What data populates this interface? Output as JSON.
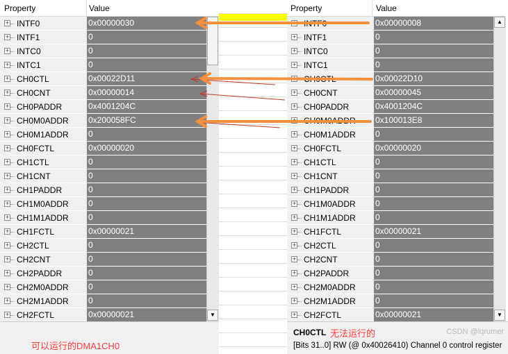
{
  "columns": {
    "property": "Property",
    "value": "Value"
  },
  "left": {
    "rows": [
      [
        "INTF0",
        "0x00000030"
      ],
      [
        "INTF1",
        "0"
      ],
      [
        "INTC0",
        "0"
      ],
      [
        "INTC1",
        "0"
      ],
      [
        "CH0CTL",
        "0x00022D11"
      ],
      [
        "CH0CNT",
        "0x00000014"
      ],
      [
        "CH0PADDR",
        "0x4001204C"
      ],
      [
        "CH0M0ADDR",
        "0x200058FC"
      ],
      [
        "CH0M1ADDR",
        "0"
      ],
      [
        "CH0FCTL",
        "0x00000020"
      ],
      [
        "CH1CTL",
        "0"
      ],
      [
        "CH1CNT",
        "0"
      ],
      [
        "CH1PADDR",
        "0"
      ],
      [
        "CH1M0ADDR",
        "0"
      ],
      [
        "CH1M1ADDR",
        "0"
      ],
      [
        "CH1FCTL",
        "0x00000021"
      ],
      [
        "CH2CTL",
        "0"
      ],
      [
        "CH2CNT",
        "0"
      ],
      [
        "CH2PADDR",
        "0"
      ],
      [
        "CH2M0ADDR",
        "0"
      ],
      [
        "CH2M1ADDR",
        "0"
      ],
      [
        "CH2FCTL",
        "0x00000021"
      ]
    ],
    "annotation": "可以运行的DMA1CH0"
  },
  "right": {
    "rows": [
      [
        "INTF0",
        "0x00000008"
      ],
      [
        "INTF1",
        "0"
      ],
      [
        "INTC0",
        "0"
      ],
      [
        "INTC1",
        "0"
      ],
      [
        "CH0CTL",
        "0x00022D10"
      ],
      [
        "CH0CNT",
        "0x00000045"
      ],
      [
        "CH0PADDR",
        "0x4001204C"
      ],
      [
        "CH0M0ADDR",
        "0x100013E8"
      ],
      [
        "CH0M1ADDR",
        "0"
      ],
      [
        "CH0FCTL",
        "0x00000020"
      ],
      [
        "CH1CTL",
        "0"
      ],
      [
        "CH1CNT",
        "0"
      ],
      [
        "CH1PADDR",
        "0"
      ],
      [
        "CH1M0ADDR",
        "0"
      ],
      [
        "CH1M1ADDR",
        "0"
      ],
      [
        "CH1FCTL",
        "0x00000021"
      ],
      [
        "CH2CTL",
        "0"
      ],
      [
        "CH2CNT",
        "0"
      ],
      [
        "CH2PADDR",
        "0"
      ],
      [
        "CH2M0ADDR",
        "0"
      ],
      [
        "CH2M1ADDR",
        "0"
      ],
      [
        "CH2FCTL",
        "0x00000021"
      ]
    ],
    "desc_title": "CH0CTL",
    "annotation": "无法运行的",
    "desc_text": "[Bits 31..0] RW (@ 0x40026410) Channel 0 control register"
  },
  "watermark": "CSDN @lqrumer",
  "colors": {
    "arrow": "#f5913e",
    "thin_arrow": "#c0392b",
    "highlight": "#ffff00",
    "value_bg": "#808080"
  }
}
